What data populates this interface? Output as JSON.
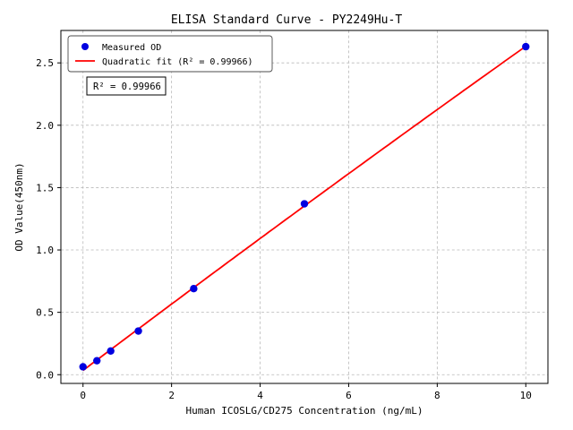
{
  "chart_data": {
    "type": "scatter",
    "title": "ELISA Standard Curve - PY2249Hu-T",
    "xlabel": "Human ICOSLG/CD275 Concentration (ng/mL)",
    "ylabel": "OD Value(450nm)",
    "xlim": [
      -0.5,
      10.5
    ],
    "ylim": [
      -0.07,
      2.76
    ],
    "xticks": [
      0,
      2,
      4,
      6,
      8,
      10
    ],
    "xticklabels": [
      "0",
      "2",
      "4",
      "6",
      "8",
      "10"
    ],
    "yticks": [
      0.0,
      0.5,
      1.0,
      1.5,
      2.0,
      2.5
    ],
    "yticklabels": [
      "0.0",
      "0.5",
      "1.0",
      "1.5",
      "2.0",
      "2.5"
    ],
    "grid": true,
    "grid_style": "dashed",
    "background_color": "#ffffff",
    "series": [
      {
        "name": "Measured OD",
        "type": "scatter",
        "color": "#0000e0",
        "x": [
          0,
          0.313,
          0.625,
          1.25,
          2.5,
          5,
          10
        ],
        "y": [
          0.063,
          0.112,
          0.19,
          0.35,
          0.69,
          1.37,
          2.63
        ]
      },
      {
        "name": "Quadratic fit (R² = 0.99966)",
        "type": "line",
        "color": "#ff0000",
        "fit": {
          "kind": "quadratic",
          "coefficients": [
            0.0342,
            0.2675,
            -0.00076
          ],
          "r_squared": 0.99966,
          "range": [
            0,
            10
          ]
        }
      }
    ],
    "legend": {
      "position": "upper left",
      "entries": [
        "Measured OD",
        "Quadratic fit (R² = 0.99966)"
      ]
    },
    "annotation": "R² = 0.99966"
  }
}
